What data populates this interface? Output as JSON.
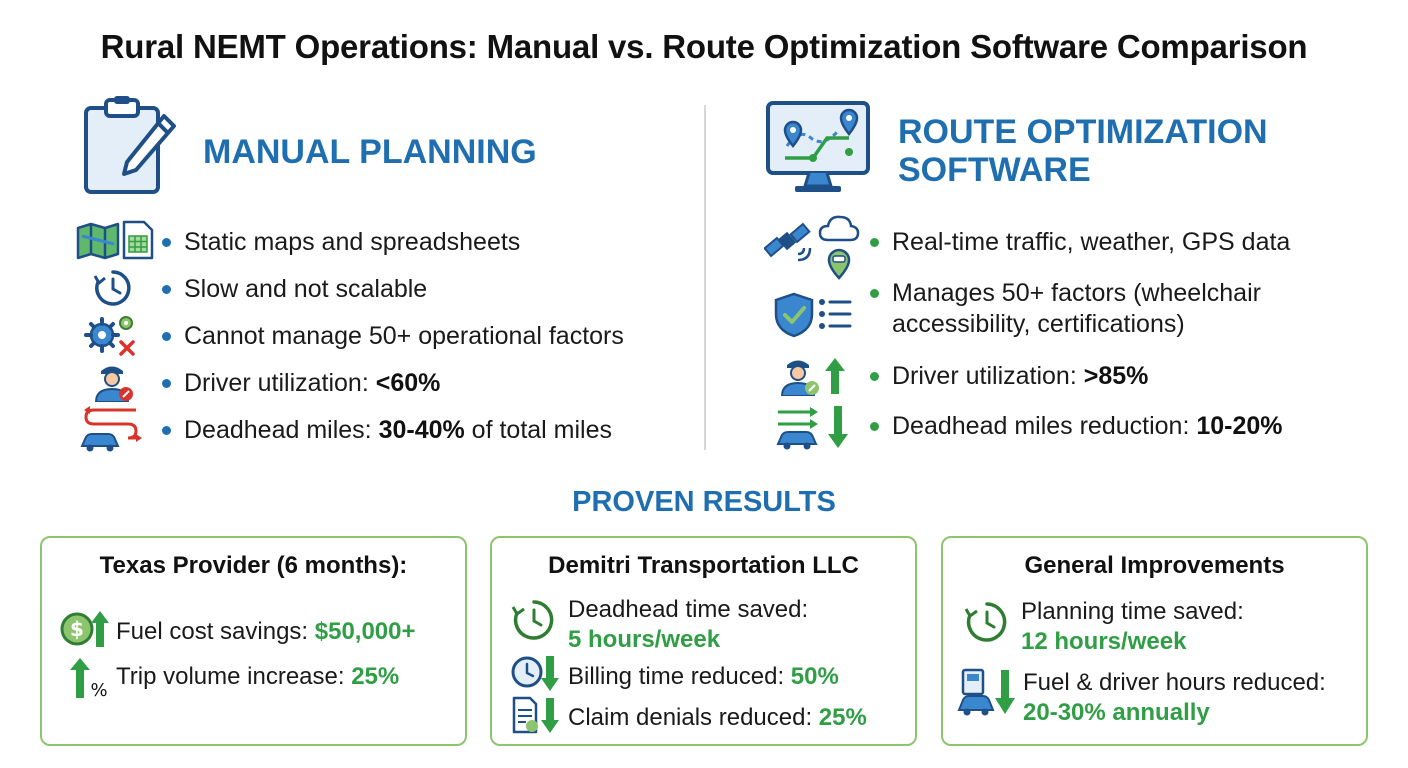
{
  "title": "Rural NEMT Operations: Manual vs. Route Optimization Software Comparison",
  "manual": {
    "heading": "MANUAL PLANNING",
    "items": [
      {
        "text": "Static maps and spreadsheets",
        "value": ""
      },
      {
        "text": "Slow and not scalable",
        "value": ""
      },
      {
        "text": "Cannot manage 50+ operational factors",
        "value": ""
      },
      {
        "text": "Driver utilization: ",
        "value": "<60%",
        "suffix": ""
      },
      {
        "text": "Deadhead miles: ",
        "value": "30-40%",
        "suffix": " of total miles"
      }
    ]
  },
  "software": {
    "heading_line1": "ROUTE OPTIMIZATION",
    "heading_line2": "SOFTWARE",
    "items": [
      {
        "text": "Real-time traffic, weather, GPS data",
        "value": ""
      },
      {
        "text_line1": "Manages 50+ factors (wheelchair",
        "text_line2": "accessibility, certifications)"
      },
      {
        "text": "Driver utilization: ",
        "value": ">85%"
      },
      {
        "text": "Deadhead miles reduction: ",
        "value": "10-20%"
      }
    ]
  },
  "results": {
    "heading": "PROVEN RESULTS",
    "cards": [
      {
        "title": "Texas Provider (6 months):",
        "metrics": [
          {
            "label": "Fuel cost savings: ",
            "value": "$50,000+"
          },
          {
            "label": "Trip volume increase: ",
            "value": "25%"
          }
        ]
      },
      {
        "title": "Demitri Transportation LLC",
        "metrics": [
          {
            "label": "Deadhead time saved:",
            "value": "5 hours/week"
          },
          {
            "label": "Billing time reduced: ",
            "value": "50%"
          },
          {
            "label": "Claim denials reduced: ",
            "value": "25%"
          }
        ]
      },
      {
        "title": "General Improvements",
        "metrics": [
          {
            "label": "Planning time saved:",
            "value": "12 hours/week"
          },
          {
            "label": "Fuel & driver hours reduced:",
            "value": "20-30% annually"
          }
        ]
      }
    ]
  },
  "icons": {
    "clipboard": "clipboard-pencil-icon",
    "monitor": "monitor-map-icon",
    "map": "folded-map-icon",
    "sheet": "spreadsheet-icon",
    "clock": "slow-clock-icon",
    "gears": "gears-x-icon",
    "driver": "driver-icon",
    "deadhead": "car-route-icon",
    "satellite": "satellite-icon",
    "cloud": "cloud-pin-icon",
    "shield": "shield-list-icon",
    "driver_up": "driver-up-icon",
    "car_down": "car-down-icon"
  },
  "colors": {
    "blue": "#1f6fb0",
    "green": "#2f9e44",
    "red": "#d9342b",
    "card_border": "#8cc56e"
  }
}
